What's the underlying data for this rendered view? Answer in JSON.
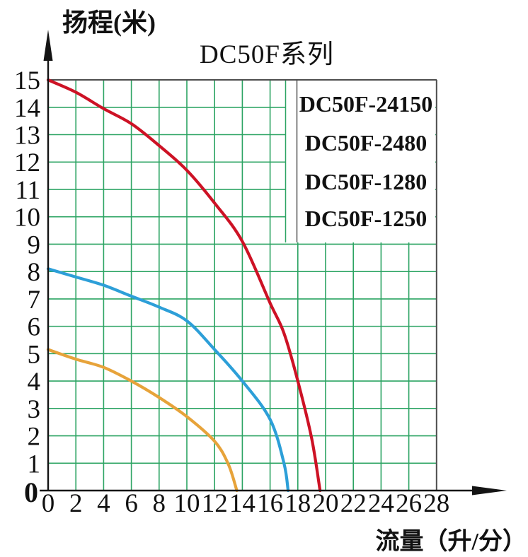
{
  "page": {
    "background": "#ffffff"
  },
  "chart_data": {
    "type": "line",
    "title": "DC50F系列",
    "y_axis_title": "扬程(米)",
    "x_axis_title": "流量（升/分）",
    "xlabel": "流量（升/分）",
    "ylabel": "扬程(米)",
    "xlim": [
      0,
      28
    ],
    "ylim": [
      0,
      15
    ],
    "x_ticks": [
      0,
      2,
      4,
      6,
      8,
      10,
      12,
      14,
      16,
      18,
      20,
      22,
      24,
      26,
      28
    ],
    "y_ticks": [
      0,
      1,
      2,
      3,
      4,
      5,
      6,
      7,
      8,
      9,
      10,
      11,
      12,
      13,
      14,
      15
    ],
    "grid": true,
    "grid_color": "#2ca463",
    "border_color": "#4d4d4d",
    "axis_color": "#141414",
    "legend_position": "top-right",
    "legend": [
      {
        "label": "DC50F-24150",
        "color": "#cd1225"
      },
      {
        "label": "DC50F-2480",
        "color": "#2d9fd8"
      },
      {
        "label": "DC50F-1280",
        "color": "#2d9fd8"
      },
      {
        "label": "DC50F-1250",
        "color": "#e7a33a"
      }
    ],
    "series": [
      {
        "name": "DC50F-24150",
        "color": "#cd1225",
        "points": [
          [
            0,
            15
          ],
          [
            2,
            14.55
          ],
          [
            4,
            13.95
          ],
          [
            6,
            13.4
          ],
          [
            8,
            12.6
          ],
          [
            10,
            11.7
          ],
          [
            12,
            10.5
          ],
          [
            14,
            9.1
          ],
          [
            16,
            6.85
          ],
          [
            17,
            5.75
          ],
          [
            18,
            4.0
          ],
          [
            19,
            1.9
          ],
          [
            19.6,
            0
          ]
        ]
      },
      {
        "name": "DC50F-2480 / DC50F-1280",
        "color": "#2d9fd8",
        "points": [
          [
            0,
            8.1
          ],
          [
            2,
            7.8
          ],
          [
            4,
            7.5
          ],
          [
            6,
            7.1
          ],
          [
            8,
            6.7
          ],
          [
            10,
            6.2
          ],
          [
            12,
            5.15
          ],
          [
            14,
            4.0
          ],
          [
            16,
            2.6
          ],
          [
            17,
            1.0
          ],
          [
            17.3,
            0
          ]
        ]
      },
      {
        "name": "DC50F-1250",
        "color": "#e7a33a",
        "points": [
          [
            0,
            5.15
          ],
          [
            2,
            4.8
          ],
          [
            4,
            4.5
          ],
          [
            6,
            4.0
          ],
          [
            8,
            3.4
          ],
          [
            10,
            2.7
          ],
          [
            12,
            1.8
          ],
          [
            13,
            0.95
          ],
          [
            13.6,
            0
          ]
        ]
      }
    ]
  }
}
